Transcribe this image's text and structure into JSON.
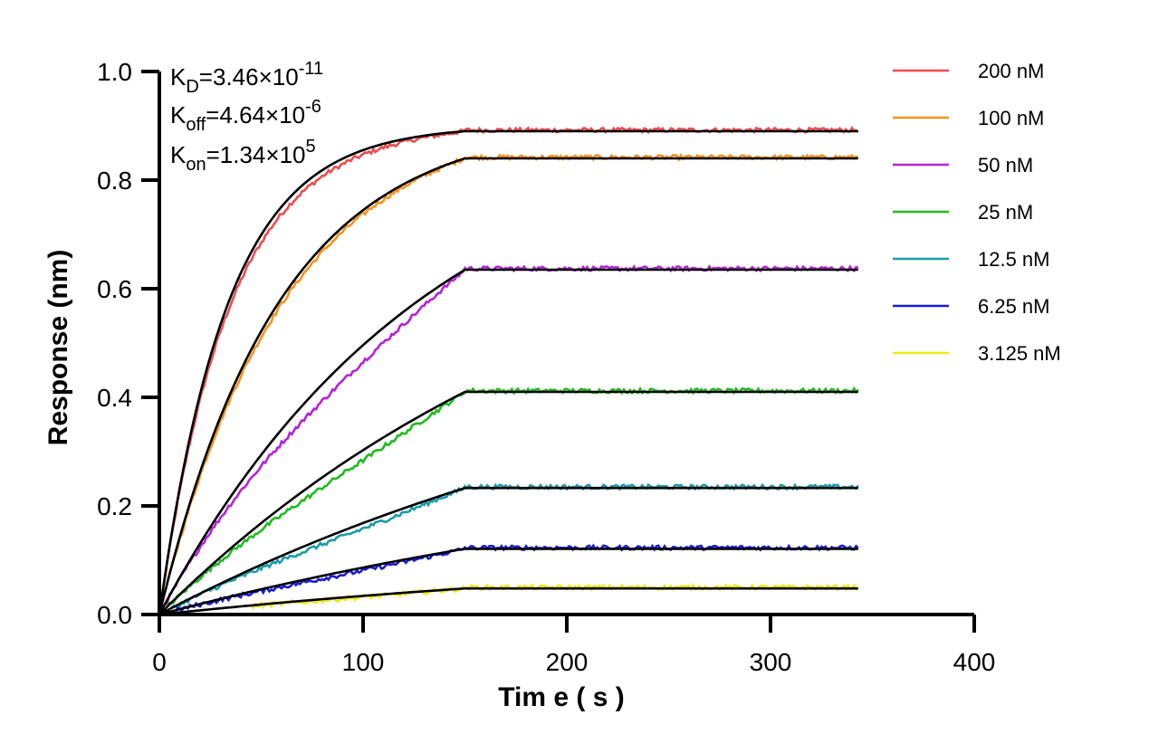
{
  "chart_data": {
    "type": "line",
    "title": "",
    "xlabel": "Tim e ( s )",
    "ylabel": "Response (nm)",
    "xlim": [
      0,
      400
    ],
    "ylim": [
      0,
      1.0
    ],
    "x_ticks": [
      "0",
      "100",
      "200",
      "300",
      "400"
    ],
    "y_ticks": [
      "0.0",
      "0.2",
      "0.4",
      "0.6",
      "0.8",
      "1.0"
    ],
    "grid": false,
    "legend_position": "top-right",
    "association_end": 150,
    "dissociation_end": 343,
    "annotations": {
      "kd": {
        "base": "K",
        "sub": "D",
        "mid": "=3.46×10",
        "sup": "-11"
      },
      "koff": {
        "base": "K",
        "sub": "off",
        "mid": "=4.64×10",
        "sup": "-6"
      },
      "kon": {
        "base": "K",
        "sub": "on",
        "mid": "=1.34×10",
        "sup": "5"
      }
    },
    "fit_color": "#000000",
    "series": [
      {
        "name": "200 nM",
        "color": "#ec4d4f",
        "plateau": 0.89,
        "k": 0.03,
        "start": 2
      },
      {
        "name": "100 nM",
        "color": "#f7921e",
        "plateau": 0.84,
        "k": 0.017,
        "start": 2
      },
      {
        "name": "50 nM",
        "color": "#b523d8",
        "plateau": 0.635,
        "k": 0.0075,
        "start": 3
      },
      {
        "name": "25 nM",
        "color": "#1fbb1f",
        "plateau": 0.41,
        "k": 0.0045,
        "start": 4
      },
      {
        "name": "12.5 nM",
        "color": "#1a9caa",
        "plateau": 0.233,
        "k": 0.0035,
        "start": 6
      },
      {
        "name": "6.25 nM",
        "color": "#1b1bd6",
        "plateau": 0.121,
        "k": 0.003,
        "start": 8
      },
      {
        "name": "3.125 nM",
        "color": "#f0ea12",
        "plateau": 0.048,
        "k": 0.003,
        "start": 45
      }
    ]
  }
}
